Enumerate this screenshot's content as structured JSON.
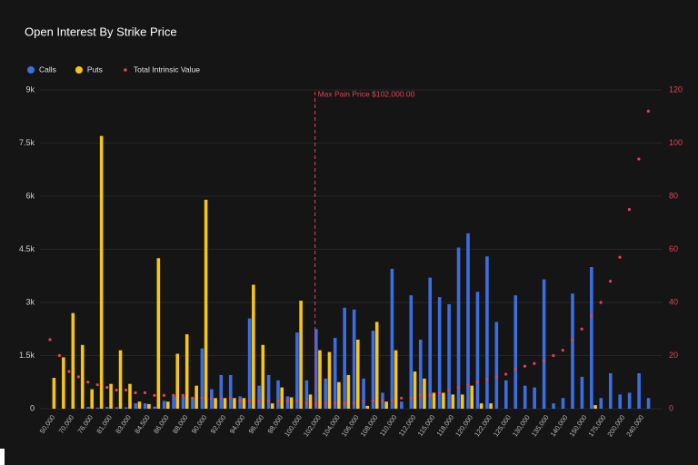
{
  "chart_data": {
    "type": "bar",
    "title": "Open Interest By Strike Price",
    "categories": [
      "50,000",
      null,
      "70,000",
      null,
      "76,000",
      null,
      "81,000",
      null,
      "83,000",
      null,
      "84,500",
      null,
      "86,000",
      null,
      "88,000",
      null,
      "90,000",
      null,
      "92,000",
      null,
      "94,000",
      null,
      "96,000",
      null,
      "98,000",
      null,
      "100,000",
      null,
      "102,000",
      null,
      "104,000",
      null,
      "106,000",
      null,
      "108,000",
      null,
      "110,000",
      null,
      "112,000",
      null,
      "115,000",
      null,
      "118,000",
      null,
      "120,000",
      null,
      "122,000",
      null,
      "125,000",
      null,
      "130,000",
      null,
      "135,000",
      null,
      "140,000",
      null,
      "150,000",
      null,
      "175,000",
      null,
      "200,000",
      null,
      "240,000",
      null
    ],
    "series": [
      {
        "name": "Calls",
        "color": "#3b6ee3",
        "values": [
          0,
          0,
          0,
          0,
          50,
          30,
          50,
          40,
          40,
          150,
          150,
          60,
          220,
          350,
          350,
          300,
          1700,
          550,
          950,
          950,
          350,
          2550,
          650,
          950,
          800,
          350,
          2150,
          800,
          2250,
          850,
          2000,
          2850,
          2800,
          850,
          2200,
          450,
          3950,
          200,
          3200,
          1950,
          3700,
          3150,
          2950,
          4550,
          4950,
          3300,
          4300,
          2450,
          800,
          3200,
          650,
          600,
          3650,
          150,
          300,
          3250,
          900,
          4000,
          300,
          1000,
          400,
          450,
          1000,
          300
        ]
      },
      {
        "name": "Puts",
        "color": "#f5c518",
        "values": [
          870,
          1450,
          2700,
          1800,
          550,
          7700,
          700,
          1650,
          700,
          200,
          130,
          4250,
          200,
          1550,
          2100,
          650,
          5900,
          300,
          300,
          300,
          300,
          3500,
          1800,
          150,
          600,
          320,
          3050,
          400,
          1650,
          1600,
          750,
          950,
          1950,
          80,
          2450,
          200,
          1650,
          0,
          1050,
          850,
          450,
          450,
          400,
          400,
          650,
          150,
          150,
          0,
          0,
          0,
          0,
          0,
          0,
          0,
          0,
          0,
          0,
          100,
          0,
          0,
          0,
          0,
          0,
          0
        ]
      },
      {
        "name": "Total Intrinsic Value",
        "type": "scatter",
        "axis": "y2",
        "color": "#e0435a",
        "values": [
          26,
          20,
          14,
          12,
          10,
          9,
          8,
          7,
          7,
          6,
          6,
          5,
          5,
          5,
          5,
          4,
          4,
          4,
          4,
          4,
          3,
          3,
          3,
          3,
          3,
          3,
          3,
          2,
          2,
          2,
          2,
          2,
          2,
          3,
          3,
          3,
          3,
          4,
          4,
          5,
          5,
          6,
          7,
          8,
          9,
          10,
          11,
          12,
          13,
          15,
          16,
          17,
          18,
          20,
          22,
          26,
          30,
          35,
          40,
          48,
          57,
          75,
          94,
          112
        ]
      }
    ],
    "ylim": [
      0,
      9000
    ],
    "yticks": [
      0,
      {
        "value": 1500,
        "label": "1.5k"
      },
      {
        "value": 3000,
        "label": "3k"
      },
      {
        "value": 4500,
        "label": "4.5k"
      },
      {
        "value": 6000,
        "label": "6k"
      },
      {
        "value": 7500,
        "label": "7.5k"
      },
      {
        "value": 9000,
        "label": "9k"
      }
    ],
    "y2lim": [
      0,
      120
    ],
    "y2ticks": [
      0,
      20,
      40,
      60,
      80,
      100,
      120
    ],
    "grid": true,
    "legend": "top-left",
    "annotation": {
      "text": "Max Pain Price $102,000.00",
      "category": "102,000",
      "color": "#e0435a"
    }
  }
}
